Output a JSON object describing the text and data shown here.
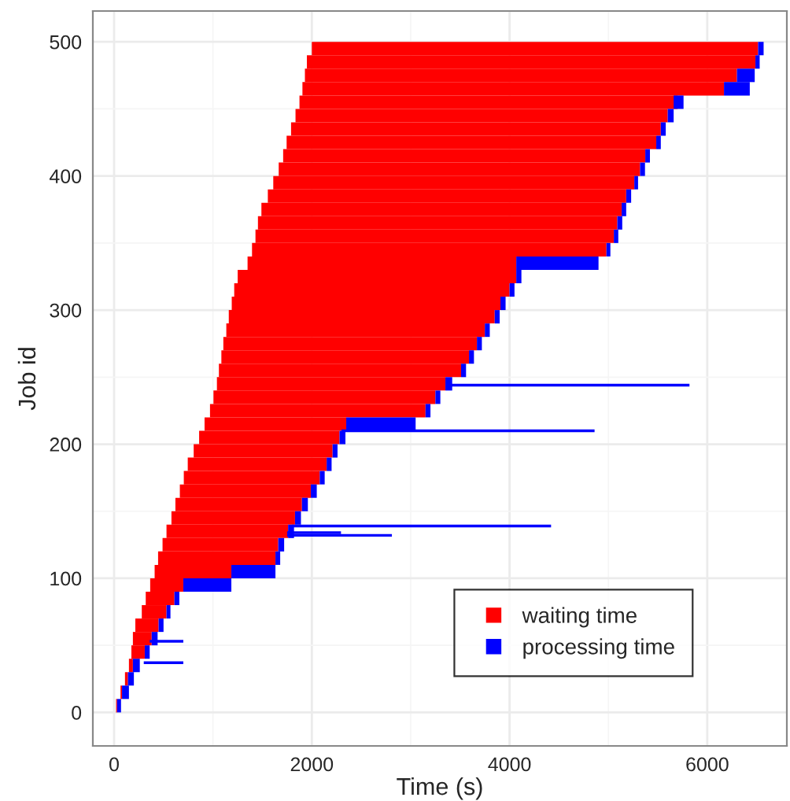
{
  "chart_data": {
    "type": "bar",
    "orientation": "horizontal",
    "xlabel": "Time (s)",
    "ylabel": "Job id",
    "series": [
      {
        "name": "waiting time",
        "color": "#ff0000",
        "x": [
          5,
          15,
          25,
          35,
          45,
          55,
          65,
          75,
          85,
          95,
          105,
          115,
          125,
          135,
          145,
          155,
          165,
          175,
          185,
          195,
          205,
          215,
          225,
          235,
          245,
          255,
          265,
          275,
          285,
          295,
          305,
          315,
          325,
          335,
          345,
          355,
          365,
          375,
          385,
          395,
          405,
          415,
          425,
          435,
          445,
          455,
          465,
          475,
          485,
          495
        ],
        "base": [
          20,
          65,
          110,
          150,
          175,
          190,
          215,
          280,
          320,
          365,
          410,
          445,
          490,
          530,
          580,
          620,
          665,
          705,
          745,
          805,
          860,
          915,
          970,
          1005,
          1040,
          1060,
          1085,
          1105,
          1135,
          1160,
          1190,
          1215,
          1250,
          1350,
          1395,
          1430,
          1455,
          1490,
          1555,
          1610,
          1665,
          1710,
          1745,
          1790,
          1835,
          1875,
          1905,
          1930,
          1950,
          2000
        ],
        "values": [
          10,
          15,
          30,
          40,
          135,
          190,
          235,
          250,
          290,
          335,
          776,
          1187,
          1170,
          1230,
          1250,
          1280,
          1325,
          1375,
          1405,
          1405,
          1420,
          1433,
          2180,
          2245,
          2311,
          2450,
          2505,
          2565,
          2615,
          2690,
          2718,
          2785,
          2818,
          2718,
          3585,
          3625,
          3635,
          3644,
          3625,
          3652,
          3655,
          3663,
          3739,
          3740,
          3765,
          3825,
          4264,
          4370,
          4537,
          4514
        ]
      },
      {
        "name": "processing time",
        "color": "#0000ff",
        "x": [
          5,
          15,
          25,
          35,
          45,
          55,
          65,
          75,
          85,
          95,
          105,
          115,
          125,
          135,
          145,
          155,
          165,
          175,
          185,
          195,
          205,
          215,
          225,
          235,
          245,
          255,
          265,
          275,
          285,
          295,
          305,
          315,
          325,
          335,
          345,
          355,
          365,
          375,
          385,
          395,
          405,
          415,
          425,
          435,
          445,
          455,
          465,
          475,
          485,
          495
        ],
        "base": [
          30,
          80,
          140,
          190,
          310,
          380,
          450,
          530,
          610,
          700,
          1186,
          1632,
          1660,
          1760,
          1830,
          1900,
          1990,
          2080,
          2150,
          2210,
          2280,
          2348,
          3150,
          3250,
          3351,
          3510,
          3590,
          3670,
          3750,
          3850,
          3908,
          4000,
          4068,
          4068,
          4980,
          5055,
          5090,
          5134,
          5180,
          5262,
          5320,
          5373,
          5484,
          5530,
          5600,
          5660,
          6169,
          6300,
          6487,
          6514
        ],
        "values": [
          40,
          70,
          60,
          70,
          50,
          60,
          50,
          40,
          50,
          486,
          446,
          48,
          60,
          60,
          60,
          60,
          60,
          50,
          50,
          50,
          60,
          702,
          50,
          50,
          69,
          50,
          50,
          50,
          50,
          50,
          52,
          50,
          52,
          832,
          40,
          45,
          50,
          46,
          50,
          38,
          50,
          47,
          46,
          50,
          60,
          100,
          261,
          180,
          43,
          56
        ]
      },
      {
        "color": "#0000ff",
        "x": [
          37,
          53,
          132,
          134,
          139,
          210,
          244
        ],
        "base": [
          300,
          360,
          1750,
          1750,
          1800,
          2300,
          3400
        ],
        "values": [
          400,
          340,
          1060,
          545,
          2620,
          2560,
          2420
        ]
      }
    ],
    "xlim": [
      -215,
      6805
    ],
    "xticks": [
      0,
      2000,
      4000,
      6000
    ],
    "ylim": [
      -25,
      523
    ],
    "yticks": [
      0,
      100,
      200,
      300,
      400,
      500
    ],
    "grid": true,
    "legend": "bottom right"
  }
}
